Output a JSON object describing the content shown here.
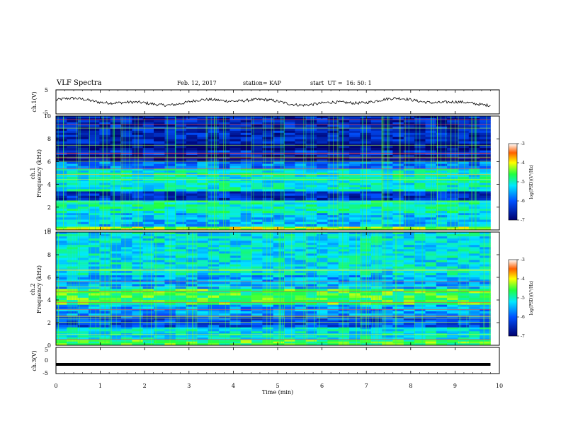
{
  "header": {
    "title": "VLF Spectra",
    "date": "Feb. 12, 2017",
    "station": "station= KAP",
    "start": "start  UT =  16: 50: 1"
  },
  "chart_data": [
    {
      "type": "line",
      "name": "ch1-voltage",
      "ylabel": "ch.1(V)",
      "ylim": [
        -5,
        5
      ],
      "yticks": [
        "5",
        "-5"
      ],
      "x_range": [
        0,
        9.8
      ],
      "description_values": "oscillating waveform around -1 to 2 V",
      "grid": false
    },
    {
      "type": "heatmap",
      "name": "ch1-spectrogram",
      "ylabel": "ch.1\nFrequency (kHz)",
      "ylabel_line1": "ch.1",
      "ylabel_line2": "Frequency (kHz)",
      "ylim": [
        0,
        10
      ],
      "yticks": [
        "0",
        "2",
        "4",
        "6",
        "8",
        "10"
      ],
      "xlim": [
        0,
        10
      ],
      "colorbar": {
        "label": "log(PSD)(V²/Hz)",
        "range": [
          -7,
          -3
        ],
        "ticks": [
          "-3",
          "-4",
          "-5",
          "-6",
          "-7"
        ]
      },
      "bands": [
        {
          "from": 0,
          "to": 0.3,
          "level": -4.2
        },
        {
          "from": 0.3,
          "to": 1.5,
          "level": -5.4
        },
        {
          "from": 1.5,
          "to": 2.6,
          "level": -5.0
        },
        {
          "from": 2.6,
          "to": 3.4,
          "level": -6.4
        },
        {
          "from": 3.4,
          "to": 5.4,
          "level": -5.1
        },
        {
          "from": 5.4,
          "to": 6.0,
          "level": -5.8
        },
        {
          "from": 6.0,
          "to": 6.6,
          "level": -6.8
        },
        {
          "from": 6.6,
          "to": 7.0,
          "level": -6.3
        },
        {
          "from": 7.0,
          "to": 7.6,
          "level": -6.9
        },
        {
          "from": 7.6,
          "to": 10,
          "level": -6.5
        }
      ]
    },
    {
      "type": "heatmap",
      "name": "ch2-spectrogram",
      "ylabel_line1": "ch.2",
      "ylabel_line2": "Frequency (kHz)",
      "ylim": [
        0,
        10
      ],
      "yticks": [
        "0",
        "2",
        "4",
        "6",
        "8",
        "10"
      ],
      "xlim": [
        0,
        10
      ],
      "colorbar": {
        "label": "log(PSD)(V²/Hz)",
        "range": [
          -7,
          -3
        ],
        "ticks": [
          "-3",
          "-4",
          "-5",
          "-6",
          "-7"
        ]
      },
      "bands": [
        {
          "from": 0,
          "to": 0.5,
          "level": -4.6
        },
        {
          "from": 0.5,
          "to": 1.6,
          "level": -5.2
        },
        {
          "from": 1.6,
          "to": 2.6,
          "level": -6.1
        },
        {
          "from": 2.6,
          "to": 3.6,
          "level": -5.6
        },
        {
          "from": 3.6,
          "to": 5.0,
          "level": -4.6
        },
        {
          "from": 5.0,
          "to": 6.2,
          "level": -5.5
        },
        {
          "from": 6.2,
          "to": 10,
          "level": -5.2
        }
      ]
    },
    {
      "type": "line",
      "name": "ch3-voltage",
      "ylabel": "ch.3(V)",
      "ylim": [
        -5,
        5
      ],
      "yticks": [
        "5",
        "0",
        "-5"
      ],
      "value": -1.5,
      "x_range": [
        0,
        9.8
      ]
    }
  ],
  "xaxis": {
    "label": "Time (min)",
    "ticks": [
      "0",
      "1",
      "2",
      "3",
      "4",
      "5",
      "6",
      "7",
      "8",
      "9",
      "10"
    ],
    "range": [
      0,
      10
    ]
  },
  "colors": {
    "low": "#00007a",
    "mid": "#00e8ff",
    "high": "#ff0000"
  }
}
